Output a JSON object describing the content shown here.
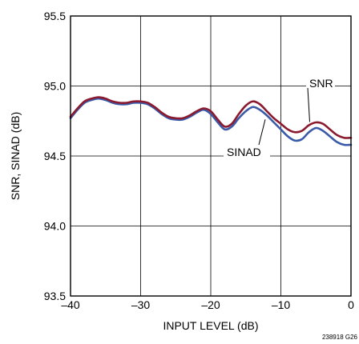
{
  "chart_data": {
    "type": "line",
    "title": "",
    "xlabel": "INPUT LEVEL (dB)",
    "ylabel": "SNR, SINAD (dB)",
    "xlim": [
      -40,
      0
    ],
    "ylim": [
      93.5,
      95.5
    ],
    "grid": true,
    "xticks": [
      -40,
      -30,
      -20,
      -10,
      0
    ],
    "xtick_labels": [
      "–40",
      "–30",
      "–20",
      "–10",
      "0"
    ],
    "yticks": [
      93.5,
      94.0,
      94.5,
      95.0,
      95.5
    ],
    "ytick_labels": [
      "93.5",
      "94.0",
      "94.5",
      "95.0",
      "95.5"
    ],
    "series": [
      {
        "name": "SNR",
        "color": "#8b1a2e",
        "x": [
          -40,
          -39,
          -38,
          -37,
          -36,
          -35,
          -34,
          -33,
          -32,
          -31,
          -30,
          -29,
          -28,
          -27,
          -26,
          -25,
          -24,
          -23,
          -22,
          -21,
          -20,
          -19,
          -18,
          -17,
          -16,
          -15,
          -14,
          -13,
          -12,
          -11,
          -10,
          -9,
          -8,
          -7,
          -6,
          -5,
          -4,
          -3,
          -2,
          -1,
          0
        ],
        "values": [
          94.78,
          94.84,
          94.89,
          94.91,
          94.92,
          94.91,
          94.89,
          94.88,
          94.88,
          94.89,
          94.89,
          94.88,
          94.85,
          94.81,
          94.78,
          94.77,
          94.77,
          94.79,
          94.82,
          94.84,
          94.82,
          94.76,
          94.71,
          94.73,
          94.8,
          94.86,
          94.89,
          94.87,
          94.82,
          94.77,
          94.73,
          94.69,
          94.67,
          94.68,
          94.72,
          94.74,
          94.73,
          94.69,
          94.65,
          94.63,
          94.63
        ]
      },
      {
        "name": "SINAD",
        "color": "#3a5aa8",
        "x": [
          -40,
          -39,
          -38,
          -37,
          -36,
          -35,
          -34,
          -33,
          -32,
          -31,
          -30,
          -29,
          -28,
          -27,
          -26,
          -25,
          -24,
          -23,
          -22,
          -21,
          -20,
          -19,
          -18,
          -17,
          -16,
          -15,
          -14,
          -13,
          -12,
          -11,
          -10,
          -9,
          -8,
          -7,
          -6,
          -5,
          -4,
          -3,
          -2,
          -1,
          0
        ],
        "values": [
          94.77,
          94.83,
          94.88,
          94.9,
          94.91,
          94.9,
          94.88,
          94.87,
          94.87,
          94.88,
          94.88,
          94.87,
          94.84,
          94.8,
          94.77,
          94.76,
          94.76,
          94.78,
          94.81,
          94.83,
          94.8,
          94.74,
          94.69,
          94.71,
          94.77,
          94.82,
          94.85,
          94.83,
          94.79,
          94.74,
          94.69,
          94.64,
          94.61,
          94.62,
          94.67,
          94.7,
          94.68,
          94.64,
          94.6,
          94.58,
          94.58
        ]
      }
    ],
    "annotations": [
      {
        "text": "SNR",
        "series": "SNR",
        "at_x": -6
      },
      {
        "text": "SINAD",
        "series": "SINAD",
        "at_x": -12
      }
    ],
    "figure_id": "238918 G26"
  }
}
